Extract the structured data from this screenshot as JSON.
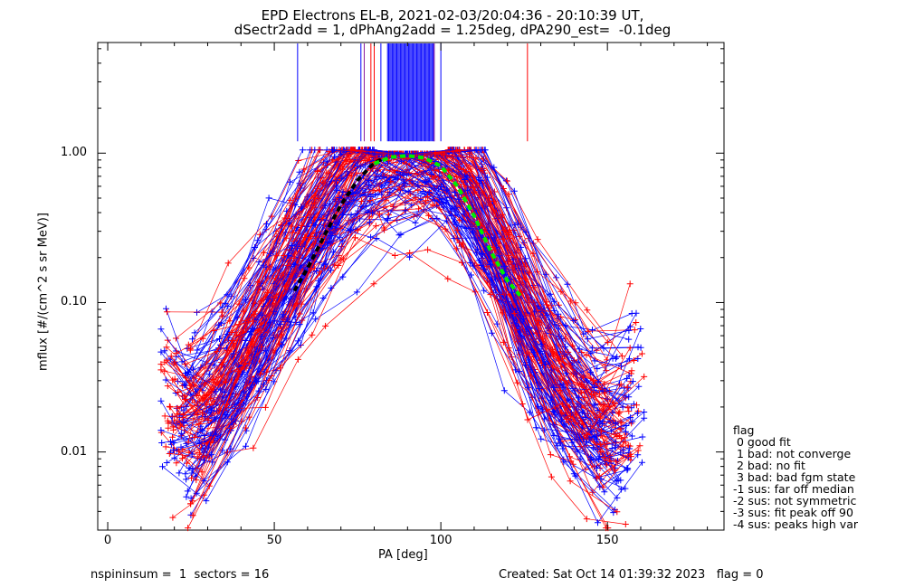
{
  "title_line1": "EPD Electrons EL-B, 2021-02-03/20:04:36 - 20:10:39 UT,",
  "title_line2": "dSectr2add = 1, dPhAng2add = 1.25deg, dPA290_est=  -0.1deg",
  "footer": {
    "left": "nspininsum =  1  sectors = 16",
    "right": "Created: Sat Oct 14 01:39:32 2023   flag = 0"
  },
  "legend": {
    "title": "flag",
    "entries": [
      " 0 good fit",
      " 1 bad: not converge",
      " 2 bad: no fit",
      " 3 bad: bad fgm state",
      "-1 sus: far off median",
      "-2 sus: not symmetric",
      "-3 sus: fit peak off 90",
      "-4 sus: peaks high var"
    ]
  },
  "colors": {
    "red": "#ff0000",
    "blue": "#0000ff",
    "purple": "#8b1a9b",
    "green": "#00ee00",
    "black": "#000000"
  },
  "chart_data": {
    "type": "line",
    "xlabel": "PA [deg]",
    "ylabel": "mflux [#/(cm^2 s sr MeV)]",
    "xlim": [
      -3,
      185
    ],
    "ylim": [
      0.003,
      5.5
    ],
    "yscale": "log",
    "x_ticks": [
      0,
      50,
      100,
      150
    ],
    "y_ticks": [
      0.01,
      0.1,
      1.0
    ],
    "y_tick_labels": [
      "0.01",
      "0.10",
      "1.00"
    ],
    "envelope": [
      [
        17,
        0.026
      ],
      [
        25,
        0.012
      ],
      [
        30,
        0.018
      ],
      [
        35,
        0.025
      ],
      [
        40,
        0.04
      ],
      [
        45,
        0.06
      ],
      [
        50,
        0.1
      ],
      [
        55,
        0.16
      ],
      [
        60,
        0.25
      ],
      [
        65,
        0.38
      ],
      [
        70,
        0.55
      ],
      [
        75,
        0.75
      ],
      [
        78,
        0.93
      ],
      [
        80,
        0.95
      ],
      [
        85,
        0.98
      ],
      [
        90,
        0.97
      ],
      [
        95,
        0.98
      ],
      [
        100,
        0.95
      ],
      [
        102,
        0.93
      ],
      [
        105,
        0.7
      ],
      [
        110,
        0.45
      ],
      [
        115,
        0.27
      ],
      [
        120,
        0.15
      ],
      [
        125,
        0.08
      ],
      [
        130,
        0.045
      ],
      [
        135,
        0.03
      ],
      [
        140,
        0.022
      ],
      [
        145,
        0.016
      ],
      [
        150,
        0.012
      ],
      [
        155,
        0.015
      ],
      [
        160,
        0.025
      ]
    ],
    "series": [
      {
        "name": "",
        "color": "#000000",
        "style": "dashed",
        "points": [
          [
            56,
            0.12
          ],
          [
            60,
            0.17
          ],
          [
            65,
            0.28
          ],
          [
            70,
            0.45
          ],
          [
            75,
            0.66
          ],
          [
            80,
            0.86
          ],
          [
            83,
            0.93
          ]
        ]
      },
      {
        "name": "",
        "color": "#00ee00",
        "style": "dashed",
        "points": [
          [
            80,
            0.85
          ],
          [
            85,
            0.94
          ],
          [
            90,
            0.96
          ],
          [
            95,
            0.93
          ],
          [
            100,
            0.82
          ],
          [
            105,
            0.6
          ],
          [
            110,
            0.38
          ],
          [
            115,
            0.22
          ],
          [
            120,
            0.14
          ],
          [
            124,
            0.11
          ]
        ]
      }
    ],
    "vertical_lines": {
      "ymin": 1.2,
      "blue": [
        57,
        76,
        82,
        100
      ],
      "red": [
        79,
        80,
        126
      ],
      "purple": [
        77,
        98
      ],
      "dense_band": [
        84,
        98
      ]
    }
  }
}
